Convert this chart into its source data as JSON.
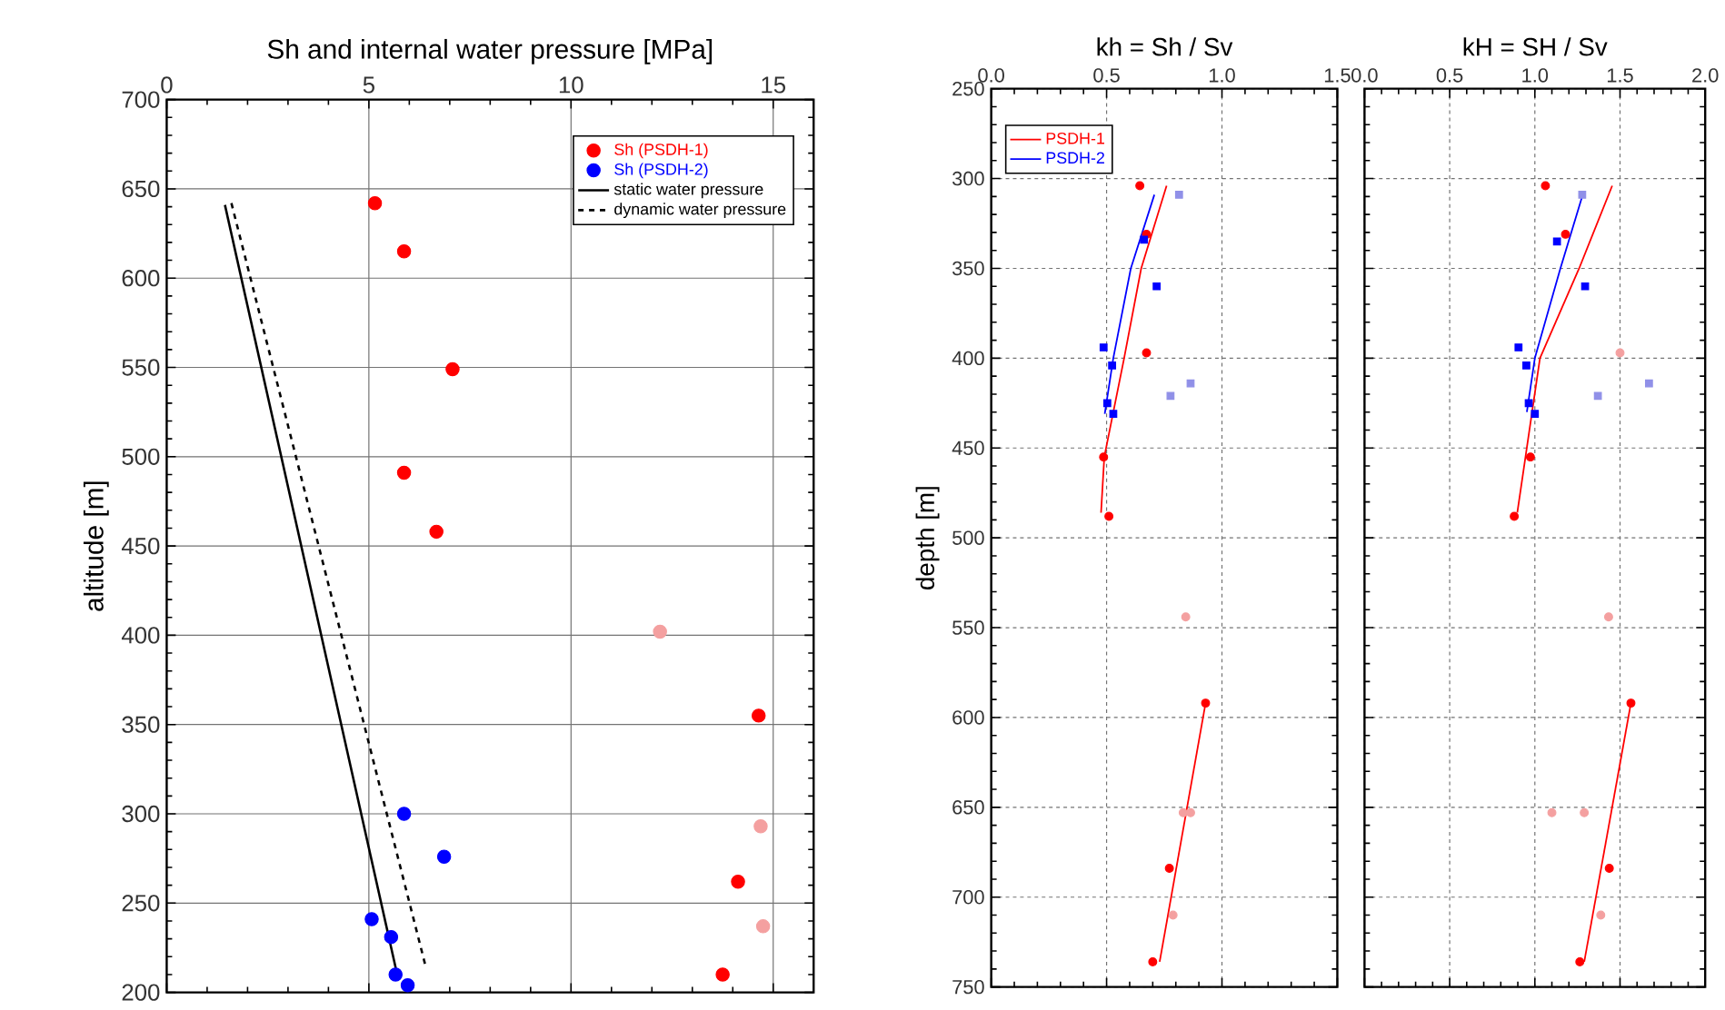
{
  "chart_data": [
    {
      "type": "scatter",
      "xlabel": "Sh and internal water pressure [MPa]",
      "ylabel": "altitude [m]",
      "xlim": [
        0,
        16
      ],
      "xticks": [
        0,
        5,
        10,
        15
      ],
      "ylim": [
        200,
        700
      ],
      "yticks": [
        200,
        250,
        300,
        350,
        400,
        450,
        500,
        550,
        600,
        650,
        700
      ],
      "grid": true,
      "legend": "top right",
      "series": [
        {
          "name": "Sh (PSDH-1)",
          "color": "#ff0000",
          "marker": "circle",
          "x": [
            5.15,
            5.87,
            7.07,
            5.87,
            6.67,
            14.64,
            14.13,
            13.75
          ],
          "values": [
            642,
            615,
            549,
            491,
            458,
            355,
            262,
            210
          ]
        },
        {
          "name": "Sh (PSDH-2)",
          "color": "#0000ff",
          "marker": "circle",
          "x": [
            5.87,
            6.86,
            5.07,
            5.55,
            5.66,
            5.96
          ],
          "values": [
            300,
            276,
            241,
            231,
            210,
            204
          ]
        },
        {
          "type": "line",
          "name": "static water pressure",
          "color": "#000000",
          "line_style": "solid",
          "x": [
            1.44,
            5.69
          ],
          "values": [
            641,
            211
          ]
        },
        {
          "type": "line",
          "name": "dynamic water pressure",
          "color": "#000000",
          "line_style": "dashed",
          "x": [
            1.6,
            6.41
          ],
          "values": [
            642,
            214
          ]
        },
        {
          "color": "#f4a0a0",
          "marker": "circle",
          "x": [
            12.2,
            14.69,
            14.75
          ],
          "values": [
            402,
            293,
            237
          ]
        }
      ]
    },
    {
      "type": "scatter",
      "xlabel": "kh = Sh / Sv",
      "ylabel": "depth [m]",
      "xlim": [
        0,
        1.5
      ],
      "xticks": [
        {
          "value": 0,
          "label": "0.0"
        },
        {
          "value": 0.5,
          "label": "0.5"
        },
        {
          "value": 1,
          "label": "1.0"
        },
        {
          "value": 1.5,
          "label": "1.5"
        }
      ],
      "ylim": [
        750,
        250
      ],
      "yticks": [
        250,
        300,
        350,
        400,
        450,
        500,
        550,
        600,
        650,
        700,
        750
      ],
      "grid": true,
      "legend": "top left",
      "series": [
        {
          "type": "line",
          "name": "PSDH-1",
          "color": "#ff0000",
          "line_style": "solid",
          "x": [
            0.76,
            0.65,
            0.576,
            0.49,
            0.476
          ],
          "values": [
            304,
            350,
            400,
            455,
            486
          ]
        },
        {
          "type": "line",
          "name": "PSDH-2",
          "color": "#0000ff",
          "line_style": "solid",
          "x": [
            0.707,
            0.605,
            0.529,
            0.492
          ],
          "values": [
            309,
            350,
            400,
            431
          ]
        },
        {
          "color": "#ff0000",
          "marker": "circle",
          "x": [
            0.644,
            0.673,
            0.673,
            0.487,
            0.51,
            0.929,
            0.772,
            0.7
          ],
          "values": [
            304,
            331,
            397,
            455,
            488,
            592,
            684,
            736
          ]
        },
        {
          "type": "line",
          "color": "#ff0000",
          "line_style": "solid",
          "x": [
            0.929,
            0.73
          ],
          "values": [
            592,
            736
          ]
        },
        {
          "color": "#f4a0a0",
          "marker": "circle",
          "x": [
            0.843,
            0.832,
            0.864,
            0.788
          ],
          "values": [
            544,
            653,
            653,
            710
          ]
        },
        {
          "color": "#0000ff",
          "marker": "square",
          "x": [
            0.662,
            0.717,
            0.487,
            0.524,
            0.503,
            0.529
          ],
          "values": [
            334,
            360,
            394,
            404,
            425,
            431
          ]
        },
        {
          "color": "#9090e8",
          "marker": "square",
          "x": [
            0.814,
            0.864,
            0.777
          ],
          "values": [
            309,
            414,
            421
          ]
        }
      ]
    },
    {
      "type": "scatter",
      "xlabel": "kH = SH / Sv",
      "xlim": [
        0,
        2
      ],
      "xticks": [
        {
          "value": 0,
          "label": "0.0"
        },
        {
          "value": 0.5,
          "label": "0.5"
        },
        {
          "value": 1,
          "label": "1.0"
        },
        {
          "value": 1.5,
          "label": "1.5"
        },
        {
          "value": 2,
          "label": "2.0"
        }
      ],
      "ylim": [
        750,
        250
      ],
      "yticks": [
        250,
        300,
        350,
        400,
        450,
        500,
        550,
        600,
        650,
        700,
        750
      ],
      "grid": true,
      "tick_labels": "x",
      "series": [
        {
          "type": "line",
          "color": "#ff0000",
          "line_style": "solid",
          "x": [
            1.454,
            1.26,
            1.03,
            0.897
          ],
          "values": [
            304,
            350,
            400,
            486
          ]
        },
        {
          "type": "line",
          "color": "#0000ff",
          "line_style": "solid",
          "x": [
            1.278,
            1.15,
            1.0,
            0.953
          ],
          "values": [
            310,
            350,
            400,
            430
          ]
        },
        {
          "color": "#ff0000",
          "marker": "circle",
          "x": [
            1.062,
            1.18,
            0.974,
            0.879,
            1.564,
            1.437,
            1.264
          ],
          "values": [
            304,
            331,
            455,
            488,
            592,
            684,
            736
          ]
        },
        {
          "type": "line",
          "color": "#ff0000",
          "line_style": "solid",
          "x": [
            1.564,
            1.29
          ],
          "values": [
            592,
            736
          ]
        },
        {
          "color": "#f4a0a0",
          "marker": "circle",
          "x": [
            1.5,
            1.433,
            1.1,
            1.29,
            1.387
          ],
          "values": [
            397,
            544,
            653,
            653,
            710
          ]
        },
        {
          "color": "#0000ff",
          "marker": "square",
          "x": [
            1.13,
            1.295,
            0.904,
            0.95,
            0.964,
            1.0
          ],
          "values": [
            335,
            360,
            394,
            404,
            425,
            431
          ]
        },
        {
          "color": "#9090e8",
          "marker": "square",
          "x": [
            1.278,
            1.67,
            1.37
          ],
          "values": [
            309,
            414,
            421
          ]
        }
      ]
    }
  ]
}
